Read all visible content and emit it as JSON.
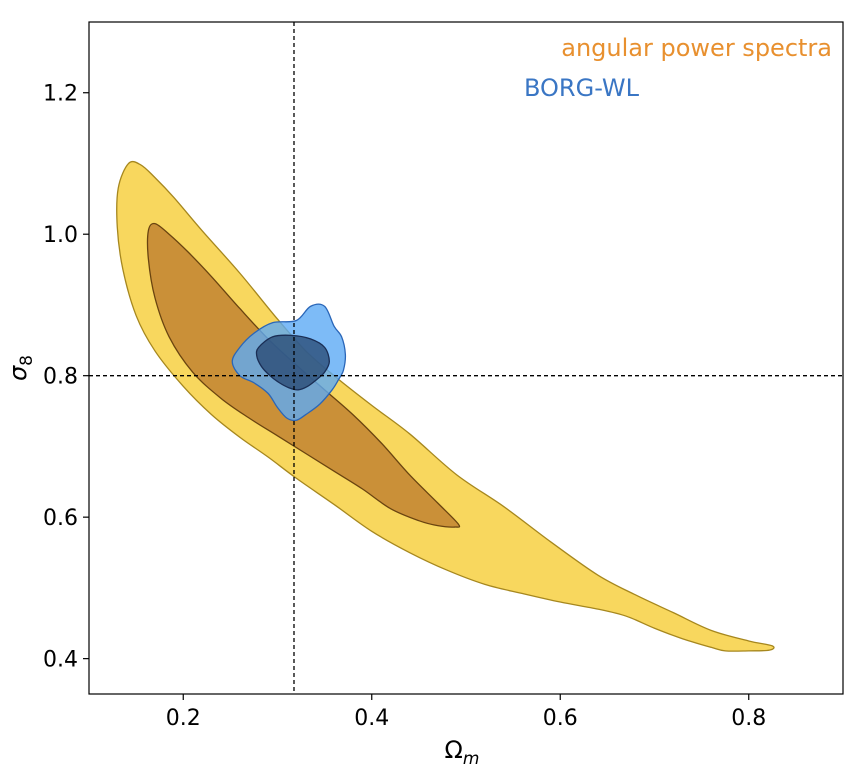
{
  "chart_data": {
    "type": "contour",
    "xlabel_main": "Ω",
    "xlabel_sub": "m",
    "ylabel_main": "σ",
    "ylabel_sub": "8",
    "xlim": [
      0.1,
      0.9
    ],
    "ylim": [
      0.35,
      1.3
    ],
    "xticks": [
      0.2,
      0.4,
      0.6,
      0.8
    ],
    "xtick_labels": [
      "0.2",
      "0.4",
      "0.6",
      "0.8"
    ],
    "yticks": [
      0.4,
      0.6,
      0.8,
      1.0,
      1.2
    ],
    "ytick_labels": [
      "0.4",
      "0.6",
      "0.8",
      "1.0",
      "1.2"
    ],
    "reference_lines": {
      "x": 0.3175,
      "y": 0.8
    },
    "legend": {
      "position": "top-right",
      "entries": [
        {
          "label": "angular power spectra",
          "color": "#e8902f"
        },
        {
          "label": "BORG-WL",
          "color": "#3a76c4"
        }
      ]
    },
    "series": [
      {
        "name": "angular power spectra",
        "levels": [
          {
            "level": "outer",
            "fill": "#f5c720",
            "opacity": 0.72,
            "stroke": "#a6871e",
            "points": [
              [
                0.142,
                1.1
              ],
              [
                0.155,
                1.098
              ],
              [
                0.17,
                1.08
              ],
              [
                0.19,
                1.052
              ],
              [
                0.22,
                1.005
              ],
              [
                0.26,
                0.945
              ],
              [
                0.3,
                0.88
              ],
              [
                0.33,
                0.835
              ],
              [
                0.36,
                0.8
              ],
              [
                0.4,
                0.758
              ],
              [
                0.44,
                0.718
              ],
              [
                0.49,
                0.66
              ],
              [
                0.54,
                0.615
              ],
              [
                0.59,
                0.565
              ],
              [
                0.64,
                0.518
              ],
              [
                0.68,
                0.49
              ],
              [
                0.72,
                0.465
              ],
              [
                0.76,
                0.44
              ],
              [
                0.8,
                0.425
              ],
              [
                0.825,
                0.418
              ],
              [
                0.822,
                0.412
              ],
              [
                0.8,
                0.411
              ],
              [
                0.775,
                0.411
              ],
              [
                0.76,
                0.416
              ],
              [
                0.73,
                0.428
              ],
              [
                0.7,
                0.443
              ],
              [
                0.67,
                0.46
              ],
              [
                0.64,
                0.47
              ],
              [
                0.6,
                0.48
              ],
              [
                0.56,
                0.492
              ],
              [
                0.52,
                0.505
              ],
              [
                0.48,
                0.525
              ],
              [
                0.44,
                0.55
              ],
              [
                0.4,
                0.58
              ],
              [
                0.36,
                0.618
              ],
              [
                0.32,
                0.655
              ],
              [
                0.29,
                0.685
              ],
              [
                0.26,
                0.713
              ],
              [
                0.23,
                0.745
              ],
              [
                0.2,
                0.785
              ],
              [
                0.17,
                0.835
              ],
              [
                0.15,
                0.885
              ],
              [
                0.136,
                0.95
              ],
              [
                0.13,
                1.01
              ],
              [
                0.131,
                1.065
              ]
            ]
          },
          {
            "level": "inner",
            "fill": "#b8742a",
            "opacity": 0.72,
            "stroke": "#6a4410",
            "points": [
              [
                0.17,
                1.015
              ],
              [
                0.185,
                1.0
              ],
              [
                0.205,
                0.975
              ],
              [
                0.23,
                0.94
              ],
              [
                0.26,
                0.895
              ],
              [
                0.29,
                0.852
              ],
              [
                0.32,
                0.815
              ],
              [
                0.35,
                0.78
              ],
              [
                0.38,
                0.745
              ],
              [
                0.41,
                0.705
              ],
              [
                0.44,
                0.66
              ],
              [
                0.47,
                0.62
              ],
              [
                0.492,
                0.59
              ],
              [
                0.488,
                0.586
              ],
              [
                0.47,
                0.588
              ],
              [
                0.45,
                0.595
              ],
              [
                0.42,
                0.612
              ],
              [
                0.39,
                0.64
              ],
              [
                0.36,
                0.665
              ],
              [
                0.33,
                0.69
              ],
              [
                0.3,
                0.715
              ],
              [
                0.27,
                0.74
              ],
              [
                0.24,
                0.768
              ],
              [
                0.21,
                0.805
              ],
              [
                0.185,
                0.855
              ],
              [
                0.17,
                0.91
              ],
              [
                0.163,
                0.965
              ],
              [
                0.163,
                1.005
              ]
            ]
          }
        ]
      },
      {
        "name": "BORG-WL",
        "levels": [
          {
            "level": "outer",
            "fill": "#5caaf5",
            "opacity": 0.8,
            "stroke": "#2a66b8",
            "points": [
              [
                0.26,
                0.84
              ],
              [
                0.275,
                0.86
              ],
              [
                0.295,
                0.875
              ],
              [
                0.32,
                0.878
              ],
              [
                0.335,
                0.898
              ],
              [
                0.35,
                0.898
              ],
              [
                0.36,
                0.87
              ],
              [
                0.368,
                0.855
              ],
              [
                0.372,
                0.83
              ],
              [
                0.37,
                0.808
              ],
              [
                0.365,
                0.795
              ],
              [
                0.358,
                0.78
              ],
              [
                0.345,
                0.76
              ],
              [
                0.33,
                0.745
              ],
              [
                0.32,
                0.737
              ],
              [
                0.31,
                0.74
              ],
              [
                0.3,
                0.755
              ],
              [
                0.29,
                0.775
              ],
              [
                0.275,
                0.79
              ],
              [
                0.26,
                0.8
              ],
              [
                0.252,
                0.82
              ]
            ]
          },
          {
            "level": "inner",
            "fill": "#25456f",
            "opacity": 0.75,
            "stroke": "#1a2e55",
            "points": [
              [
                0.28,
                0.84
              ],
              [
                0.295,
                0.855
              ],
              [
                0.315,
                0.857
              ],
              [
                0.335,
                0.852
              ],
              [
                0.35,
                0.84
              ],
              [
                0.355,
                0.82
              ],
              [
                0.35,
                0.805
              ],
              [
                0.342,
                0.795
              ],
              [
                0.332,
                0.785
              ],
              [
                0.322,
                0.78
              ],
              [
                0.312,
                0.783
              ],
              [
                0.302,
                0.79
              ],
              [
                0.292,
                0.8
              ],
              [
                0.283,
                0.813
              ],
              [
                0.278,
                0.828
              ]
            ]
          }
        ]
      }
    ]
  }
}
